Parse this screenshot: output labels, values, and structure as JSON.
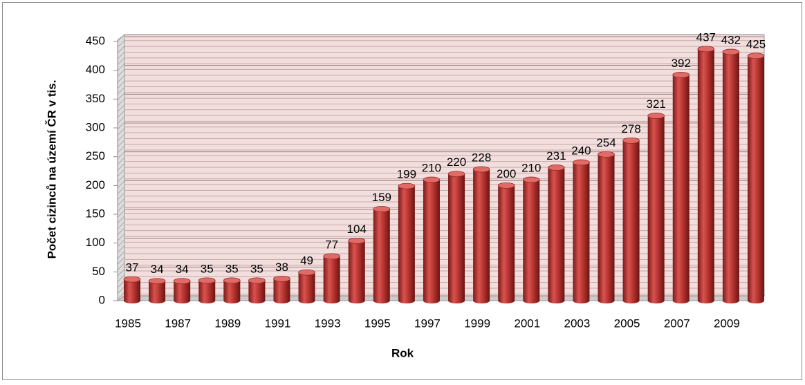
{
  "chart_data": {
    "type": "bar",
    "x_label": "Rok",
    "y_label": "Počet cizinců na území ČR v tis.",
    "categories": [
      "1985",
      null,
      "1987",
      null,
      "1989",
      null,
      "1991",
      null,
      "1993",
      null,
      "1995",
      null,
      "1997",
      null,
      "1999",
      null,
      "2001",
      null,
      "2003",
      null,
      "2005",
      null,
      "2007",
      null,
      "2009",
      null
    ],
    "values": [
      37,
      34,
      34,
      35,
      35,
      35,
      38,
      49,
      77,
      104,
      159,
      199,
      210,
      220,
      228,
      200,
      210,
      231,
      240,
      254,
      278,
      321,
      392,
      437,
      432,
      425
    ],
    "color": "#c0392b",
    "ylim": [
      0,
      450
    ],
    "yticks": [
      0,
      50,
      100,
      150,
      200,
      250,
      300,
      350,
      400,
      450
    ],
    "grid": true
  }
}
